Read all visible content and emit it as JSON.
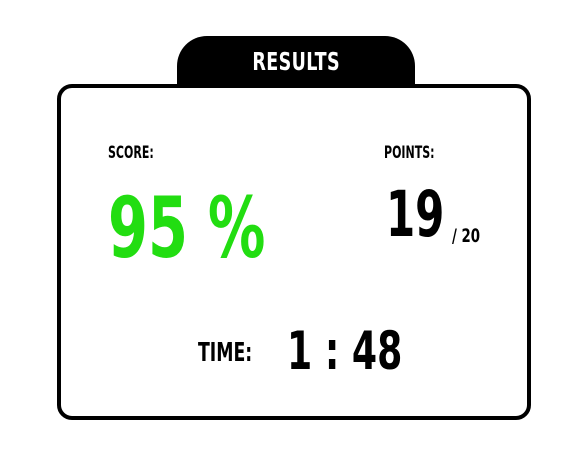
{
  "header": {
    "title": "RESULTS"
  },
  "score": {
    "label": "SCORE:",
    "value": "95 %"
  },
  "points": {
    "label": "POINTS:",
    "value": "19",
    "max": "/ 20"
  },
  "time": {
    "label": "TIME:",
    "value": "1 : 48"
  },
  "colors": {
    "score": "#22dd11",
    "text": "#000000",
    "tab_background": "#000000",
    "tab_text": "#ffffff",
    "card_background": "#ffffff"
  }
}
